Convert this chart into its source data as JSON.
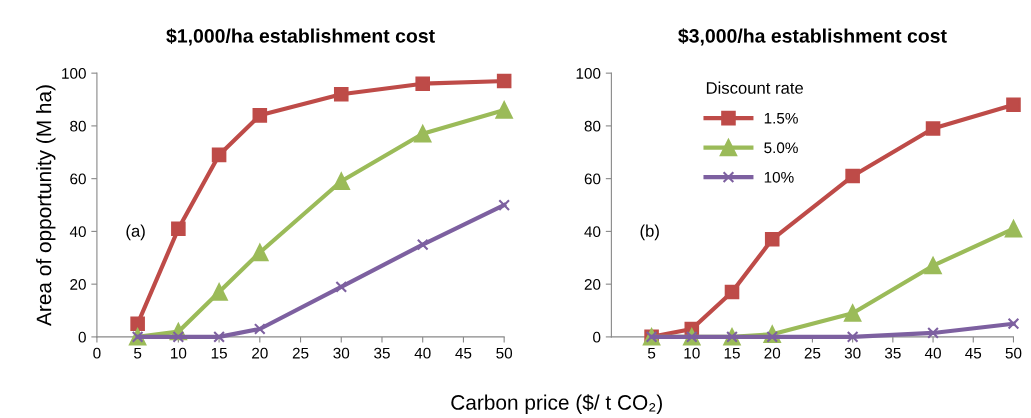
{
  "chart_data": [
    {
      "type": "line",
      "title": "$1,000/ha establishment cost",
      "xlabel": "Carbon price ($/ t CO₂)",
      "ylabel": "Area of opportunity (M ha)",
      "annotations": [
        "(a)"
      ],
      "x": [
        5,
        10,
        15,
        20,
        30,
        40,
        50
      ],
      "xlim": [
        0,
        50
      ],
      "xticks": [
        0,
        5,
        10,
        15,
        20,
        25,
        30,
        35,
        40,
        45,
        50
      ],
      "ylim": [
        0,
        100
      ],
      "yticks": [
        0,
        20,
        40,
        60,
        80,
        100
      ],
      "grid": false,
      "legend": false,
      "series": [
        {
          "color": "#be4b48",
          "marker": "square",
          "values": [
            5,
            41,
            69,
            84,
            92,
            96,
            97
          ]
        },
        {
          "color": "#9bbb59",
          "marker": "triangle",
          "values": [
            0,
            2,
            17,
            32,
            59,
            77,
            86
          ]
        },
        {
          "color": "#7d60a0",
          "marker": "cross",
          "values": [
            0,
            0,
            0,
            3,
            19,
            35,
            50
          ]
        }
      ]
    },
    {
      "type": "line",
      "title": "$3,000/ha establishment cost",
      "legend_title": "Discount rate",
      "annotations": [
        "(b)"
      ],
      "x": [
        5,
        10,
        15,
        20,
        30,
        40,
        50
      ],
      "xlim": [
        0,
        50
      ],
      "xticks": [
        5,
        10,
        15,
        20,
        25,
        30,
        35,
        40,
        45,
        50
      ],
      "ylim": [
        0,
        100
      ],
      "yticks": [
        0,
        20,
        40,
        60,
        80,
        100
      ],
      "grid": false,
      "legend": "top left",
      "series": [
        {
          "name": "1.5%",
          "color": "#be4b48",
          "marker": "square",
          "values": [
            0,
            3,
            17,
            37,
            61,
            79,
            88
          ]
        },
        {
          "name": "5.0%",
          "color": "#9bbb59",
          "marker": "triangle",
          "values": [
            0,
            0,
            0,
            1,
            9,
            27,
            41
          ]
        },
        {
          "name": "10%",
          "color": "#7d60a0",
          "marker": "cross",
          "values": [
            0,
            0,
            0,
            0,
            0,
            1.5,
            5
          ]
        }
      ]
    }
  ]
}
